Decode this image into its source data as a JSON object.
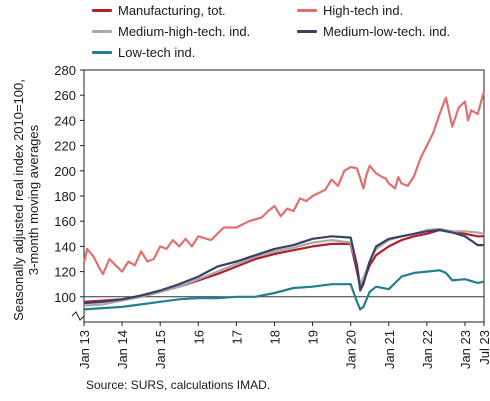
{
  "chart_data": {
    "type": "line",
    "ylabel_line1": "Seasonally adjusted real index 2010=100,",
    "ylabel_line2": "3-month moving averages",
    "source": "Source: SURS, calculations IMAD.",
    "ylim": [
      80,
      280
    ],
    "yticks": [
      100,
      120,
      140,
      160,
      180,
      200,
      220,
      240,
      260,
      280
    ],
    "xtick_labels": [
      "Jan 13",
      "Jan 14",
      "Jan 15",
      "16",
      "17",
      "18",
      "19",
      "Jan 20",
      "Jan 21",
      "Jan 22",
      "Jan 23",
      "Jul 23"
    ],
    "xtick_positions": [
      0,
      12,
      24,
      36,
      48,
      60,
      72,
      84,
      96,
      108,
      120,
      126
    ],
    "reference_line": 100,
    "series": [
      {
        "name": "Manufacturing, tot.",
        "color": "#b01f2e",
        "points": [
          [
            0,
            96
          ],
          [
            6,
            97
          ],
          [
            12,
            98
          ],
          [
            18,
            100
          ],
          [
            24,
            104
          ],
          [
            30,
            108
          ],
          [
            36,
            113
          ],
          [
            42,
            118
          ],
          [
            48,
            124
          ],
          [
            54,
            130
          ],
          [
            60,
            134
          ],
          [
            66,
            137
          ],
          [
            72,
            140
          ],
          [
            78,
            142
          ],
          [
            84,
            142
          ],
          [
            86,
            120
          ],
          [
            87,
            108
          ],
          [
            88,
            112
          ],
          [
            90,
            125
          ],
          [
            92,
            133
          ],
          [
            96,
            140
          ],
          [
            100,
            145
          ],
          [
            104,
            148
          ],
          [
            108,
            150
          ],
          [
            112,
            153
          ],
          [
            116,
            152
          ],
          [
            120,
            150
          ],
          [
            124,
            148
          ],
          [
            126,
            148
          ]
        ]
      },
      {
        "name": "High-tech ind.",
        "color": "#e0706e",
        "points": [
          [
            0,
            127
          ],
          [
            1,
            138
          ],
          [
            3,
            132
          ],
          [
            5,
            122
          ],
          [
            6,
            118
          ],
          [
            8,
            130
          ],
          [
            10,
            125
          ],
          [
            12,
            120
          ],
          [
            14,
            128
          ],
          [
            16,
            125
          ],
          [
            18,
            136
          ],
          [
            20,
            128
          ],
          [
            22,
            130
          ],
          [
            24,
            140
          ],
          [
            26,
            138
          ],
          [
            28,
            145
          ],
          [
            30,
            140
          ],
          [
            32,
            146
          ],
          [
            34,
            140
          ],
          [
            36,
            148
          ],
          [
            40,
            145
          ],
          [
            44,
            155
          ],
          [
            48,
            155
          ],
          [
            52,
            160
          ],
          [
            56,
            163
          ],
          [
            58,
            168
          ],
          [
            60,
            172
          ],
          [
            62,
            164
          ],
          [
            64,
            170
          ],
          [
            66,
            168
          ],
          [
            68,
            178
          ],
          [
            70,
            176
          ],
          [
            72,
            180
          ],
          [
            76,
            185
          ],
          [
            78,
            193
          ],
          [
            80,
            188
          ],
          [
            82,
            200
          ],
          [
            84,
            203
          ],
          [
            86,
            202
          ],
          [
            88,
            186
          ],
          [
            89,
            197
          ],
          [
            90,
            204
          ],
          [
            92,
            198
          ],
          [
            94,
            195
          ],
          [
            95,
            194
          ],
          [
            96,
            190
          ],
          [
            98,
            186
          ],
          [
            99,
            195
          ],
          [
            100,
            190
          ],
          [
            102,
            188
          ],
          [
            104,
            196
          ],
          [
            106,
            210
          ],
          [
            108,
            220
          ],
          [
            110,
            230
          ],
          [
            112,
            245
          ],
          [
            114,
            258
          ],
          [
            116,
            235
          ],
          [
            118,
            250
          ],
          [
            120,
            255
          ],
          [
            121,
            240
          ],
          [
            122,
            248
          ],
          [
            124,
            245
          ],
          [
            126,
            263
          ]
        ]
      },
      {
        "name": "Medium-high-tech. ind.",
        "color": "#a9a9a9",
        "points": [
          [
            0,
            93
          ],
          [
            6,
            94
          ],
          [
            12,
            97
          ],
          [
            18,
            100
          ],
          [
            24,
            104
          ],
          [
            30,
            108
          ],
          [
            36,
            114
          ],
          [
            42,
            120
          ],
          [
            48,
            126
          ],
          [
            54,
            132
          ],
          [
            60,
            136
          ],
          [
            66,
            139
          ],
          [
            72,
            143
          ],
          [
            78,
            145
          ],
          [
            84,
            143
          ],
          [
            86,
            125
          ],
          [
            87,
            110
          ],
          [
            88,
            115
          ],
          [
            90,
            128
          ],
          [
            92,
            138
          ],
          [
            96,
            145
          ],
          [
            100,
            148
          ],
          [
            104,
            150
          ],
          [
            108,
            153
          ],
          [
            112,
            154
          ],
          [
            116,
            152
          ],
          [
            120,
            152
          ],
          [
            124,
            151
          ],
          [
            126,
            150
          ]
        ]
      },
      {
        "name": "Medium-low-tech. ind.",
        "color": "#3b4163",
        "points": [
          [
            0,
            95
          ],
          [
            6,
            96
          ],
          [
            12,
            98
          ],
          [
            18,
            101
          ],
          [
            24,
            105
          ],
          [
            30,
            110
          ],
          [
            36,
            116
          ],
          [
            42,
            124
          ],
          [
            48,
            128
          ],
          [
            54,
            133
          ],
          [
            60,
            138
          ],
          [
            66,
            141
          ],
          [
            72,
            146
          ],
          [
            78,
            148
          ],
          [
            84,
            147
          ],
          [
            86,
            125
          ],
          [
            87,
            105
          ],
          [
            88,
            110
          ],
          [
            90,
            128
          ],
          [
            92,
            140
          ],
          [
            96,
            146
          ],
          [
            100,
            148
          ],
          [
            104,
            150
          ],
          [
            108,
            152
          ],
          [
            112,
            153
          ],
          [
            116,
            151
          ],
          [
            120,
            148
          ],
          [
            124,
            141
          ],
          [
            126,
            141
          ]
        ]
      },
      {
        "name": "Low-tech ind.",
        "color": "#237f8f",
        "points": [
          [
            0,
            90
          ],
          [
            6,
            91
          ],
          [
            12,
            92
          ],
          [
            18,
            94
          ],
          [
            24,
            96
          ],
          [
            30,
            98
          ],
          [
            36,
            99
          ],
          [
            42,
            99
          ],
          [
            48,
            100
          ],
          [
            54,
            100
          ],
          [
            60,
            103
          ],
          [
            66,
            107
          ],
          [
            72,
            108
          ],
          [
            78,
            110
          ],
          [
            84,
            110
          ],
          [
            86,
            96
          ],
          [
            87,
            90
          ],
          [
            88,
            92
          ],
          [
            90,
            104
          ],
          [
            92,
            108
          ],
          [
            96,
            106
          ],
          [
            100,
            116
          ],
          [
            104,
            119
          ],
          [
            108,
            120
          ],
          [
            112,
            121
          ],
          [
            114,
            119
          ],
          [
            116,
            113
          ],
          [
            120,
            114
          ],
          [
            124,
            111
          ],
          [
            126,
            112
          ]
        ]
      }
    ]
  }
}
